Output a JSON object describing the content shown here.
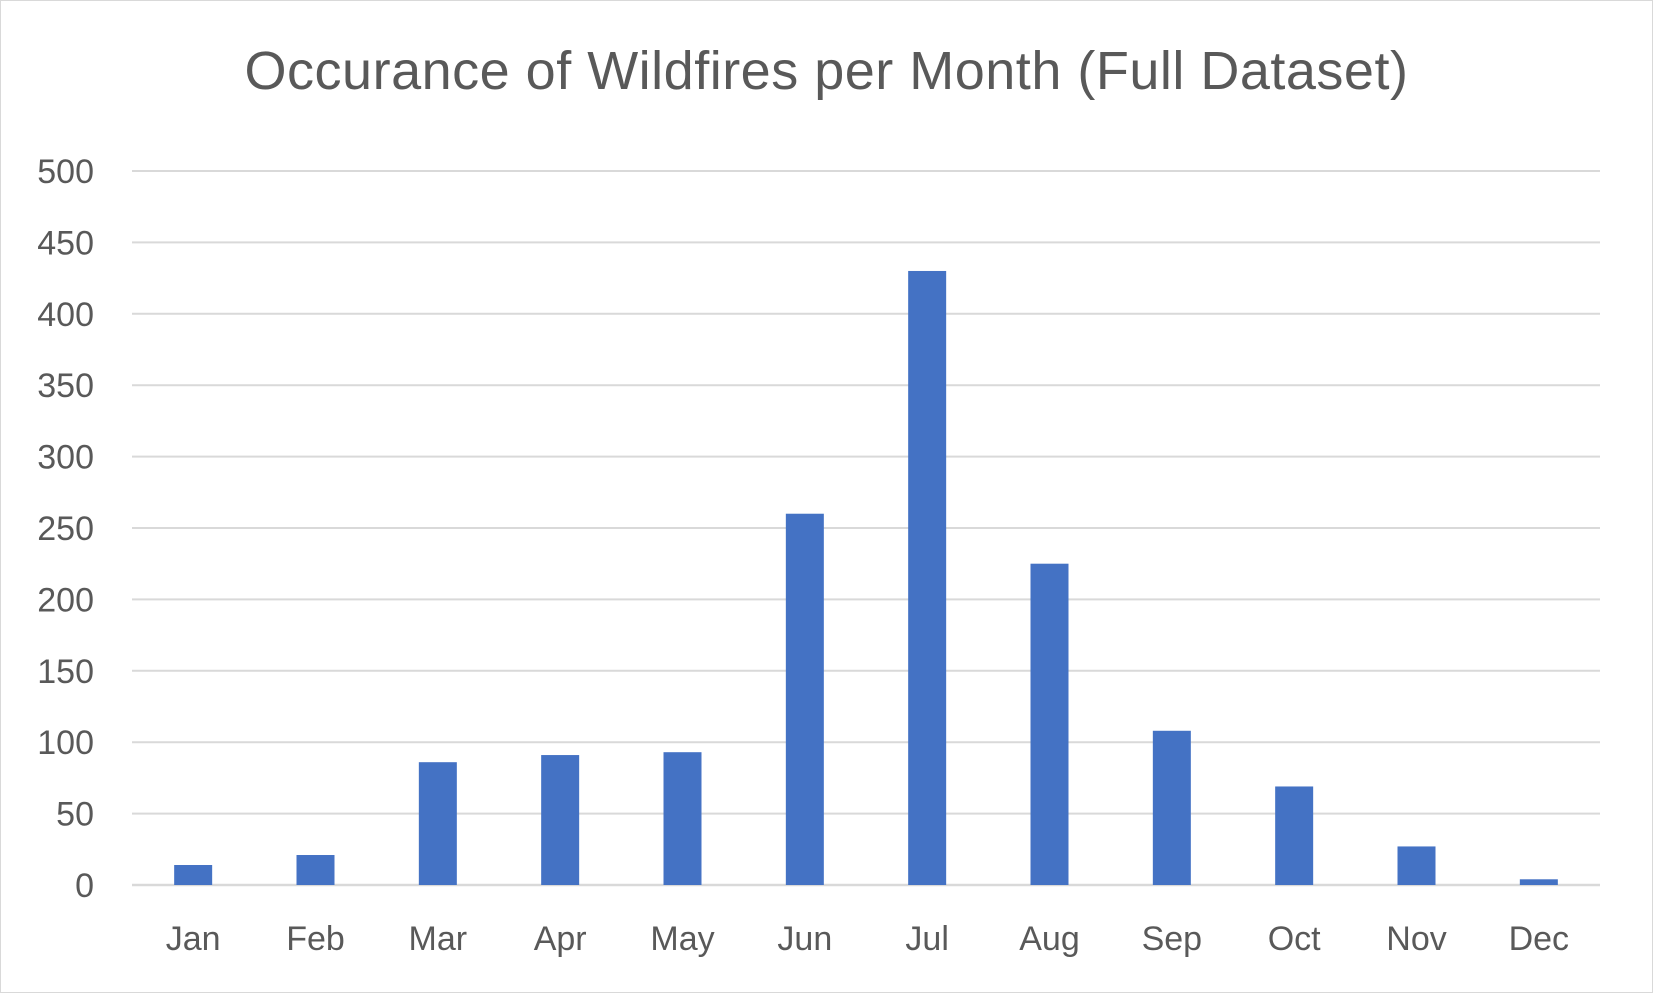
{
  "chart_data": {
    "type": "bar",
    "title": "Occurance of Wildfires per Month (Full Dataset)",
    "xlabel": "",
    "ylabel": "",
    "categories": [
      "Jan",
      "Feb",
      "Mar",
      "Apr",
      "May",
      "Jun",
      "Jul",
      "Aug",
      "Sep",
      "Oct",
      "Nov",
      "Dec"
    ],
    "values": [
      14,
      21,
      86,
      91,
      93,
      260,
      430,
      225,
      108,
      69,
      27,
      4
    ],
    "ylim": [
      0,
      500
    ],
    "yticks": [
      0,
      50,
      100,
      150,
      200,
      250,
      300,
      350,
      400,
      450,
      500
    ],
    "grid": true,
    "legend": "none",
    "colors": {
      "bar": "#4472c4",
      "gridline": "#d9d9d9",
      "text": "#595959"
    }
  }
}
